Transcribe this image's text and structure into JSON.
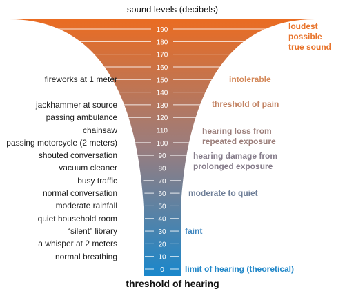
{
  "diagram": {
    "top_title": "sound levels (decibels)",
    "bottom_title": "threshold of hearing",
    "scale": [
      190,
      180,
      170,
      160,
      150,
      140,
      130,
      120,
      110,
      100,
      90,
      80,
      70,
      60,
      50,
      40,
      30,
      20,
      10,
      0
    ],
    "sources": [
      {
        "label": "fireworks at 1 meter",
        "db": 150
      },
      {
        "label": "jackhammer at source",
        "db": 130
      },
      {
        "label": "passing ambulance",
        "db": 120
      },
      {
        "label": "chainsaw",
        "db": 110
      },
      {
        "label": "passing motorcycle (2 meters)",
        "db": 100
      },
      {
        "label": "shouted conversation",
        "db": 90
      },
      {
        "label": "vacuum cleaner",
        "db": 80
      },
      {
        "label": "busy traffic",
        "db": 70
      },
      {
        "label": "normal conversation",
        "db": 60
      },
      {
        "label": "moderate rainfall",
        "db": 50
      },
      {
        "label": "quiet household room",
        "db": 40
      },
      {
        "label": "“silent” library",
        "db": 30
      },
      {
        "label": "a whisper at 2 meters",
        "db": 20
      },
      {
        "label": "normal breathing",
        "db": 10
      }
    ],
    "levels": [
      {
        "lines": [
          "loudest",
          "possible",
          "true sound"
        ],
        "db": 190,
        "color": "#e8742c"
      },
      {
        "lines": [
          "intolerable"
        ],
        "db": 150,
        "color": "#d4895a"
      },
      {
        "lines": [
          "threshold of pain"
        ],
        "db": 130,
        "color": "#c28262"
      },
      {
        "lines": [
          "hearing loss from",
          "repeated exposure"
        ],
        "db": 105,
        "color": "#9b7e7a"
      },
      {
        "lines": [
          "hearing damage from",
          "prolonged exposure"
        ],
        "db": 85,
        "color": "#857c8a"
      },
      {
        "lines": [
          "moderate to quiet"
        ],
        "db": 60,
        "color": "#6f7f98"
      },
      {
        "lines": [
          "faint"
        ],
        "db": 30,
        "color": "#3f86bf"
      },
      {
        "lines": [
          "limit of hearing (theoretical)"
        ],
        "db": 0,
        "color": "#1f86c8"
      }
    ],
    "colors": {
      "top": "#ea6c22",
      "middle": "#9a7d7e",
      "bottom": "#1a87cb",
      "scale_text": "#ffffff"
    }
  }
}
